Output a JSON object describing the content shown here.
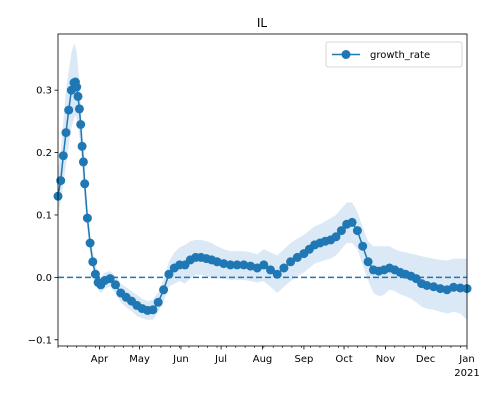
{
  "colors": {
    "series": "#1f77b4",
    "band": "#dbe9f6",
    "zero_line": "#1f77b4",
    "axes": "#000000",
    "background": "#ffffff"
  },
  "chart_data": {
    "type": "line",
    "title": "IL",
    "xlabel": "",
    "ylabel": "",
    "grid": false,
    "legend": {
      "position": "top-right",
      "entries": [
        "growth_rate"
      ]
    },
    "x_range": [
      "2020-03-01",
      "2021-01-01"
    ],
    "ylim": [
      -0.11,
      0.39
    ],
    "y_ticks": [
      -0.1,
      0.0,
      0.1,
      0.2,
      0.3
    ],
    "y_tick_labels": [
      "−0.1",
      "0.0",
      "0.1",
      "0.2",
      "0.3"
    ],
    "x_ticks": [
      {
        "date": "2020-04-01",
        "label": "Apr"
      },
      {
        "date": "2020-05-01",
        "label": "May"
      },
      {
        "date": "2020-06-01",
        "label": "Jun"
      },
      {
        "date": "2020-07-01",
        "label": "Jul"
      },
      {
        "date": "2020-08-01",
        "label": "Aug"
      },
      {
        "date": "2020-09-01",
        "label": "Sep"
      },
      {
        "date": "2020-10-01",
        "label": "Oct"
      },
      {
        "date": "2020-11-01",
        "label": "Nov"
      },
      {
        "date": "2020-12-01",
        "label": "Dec"
      },
      {
        "date": "2021-01-01",
        "label": "Jan",
        "sublabel": "2021"
      }
    ],
    "reference_line": {
      "y": 0.0,
      "style": "dashed"
    },
    "series": [
      {
        "name": "growth_rate",
        "marker": "circle",
        "x": [
          "2020-03-01",
          "2020-03-03",
          "2020-03-05",
          "2020-03-07",
          "2020-03-09",
          "2020-03-11",
          "2020-03-13",
          "2020-03-14",
          "2020-03-15",
          "2020-03-16",
          "2020-03-17",
          "2020-03-18",
          "2020-03-19",
          "2020-03-20",
          "2020-03-21",
          "2020-03-23",
          "2020-03-25",
          "2020-03-27",
          "2020-03-29",
          "2020-03-31",
          "2020-04-02",
          "2020-04-05",
          "2020-04-09",
          "2020-04-13",
          "2020-04-17",
          "2020-04-21",
          "2020-04-25",
          "2020-04-29",
          "2020-05-03",
          "2020-05-07",
          "2020-05-11",
          "2020-05-15",
          "2020-05-19",
          "2020-05-23",
          "2020-05-27",
          "2020-05-31",
          "2020-06-04",
          "2020-06-08",
          "2020-06-12",
          "2020-06-16",
          "2020-06-20",
          "2020-06-24",
          "2020-06-28",
          "2020-07-03",
          "2020-07-08",
          "2020-07-13",
          "2020-07-18",
          "2020-07-23",
          "2020-07-28",
          "2020-08-02",
          "2020-08-07",
          "2020-08-12",
          "2020-08-17",
          "2020-08-22",
          "2020-08-27",
          "2020-09-01",
          "2020-09-05",
          "2020-09-09",
          "2020-09-13",
          "2020-09-17",
          "2020-09-21",
          "2020-09-25",
          "2020-09-29",
          "2020-10-03",
          "2020-10-07",
          "2020-10-11",
          "2020-10-15",
          "2020-10-19",
          "2020-10-23",
          "2020-10-27",
          "2020-10-31",
          "2020-11-04",
          "2020-11-08",
          "2020-11-12",
          "2020-11-16",
          "2020-11-20",
          "2020-11-24",
          "2020-11-28",
          "2020-12-02",
          "2020-12-07",
          "2020-12-12",
          "2020-12-17",
          "2020-12-22",
          "2020-12-27",
          "2021-01-01"
        ],
        "values": [
          0.13,
          0.155,
          0.195,
          0.232,
          0.268,
          0.3,
          0.312,
          0.313,
          0.305,
          0.29,
          0.27,
          0.245,
          0.21,
          0.185,
          0.15,
          0.095,
          0.055,
          0.025,
          0.005,
          -0.008,
          -0.012,
          -0.005,
          -0.002,
          -0.012,
          -0.025,
          -0.032,
          -0.038,
          -0.045,
          -0.05,
          -0.053,
          -0.052,
          -0.04,
          -0.02,
          0.005,
          0.015,
          0.02,
          0.02,
          0.028,
          0.032,
          0.032,
          0.03,
          0.028,
          0.025,
          0.022,
          0.02,
          0.02,
          0.02,
          0.018,
          0.015,
          0.02,
          0.012,
          0.005,
          0.015,
          0.025,
          0.032,
          0.038,
          0.045,
          0.052,
          0.055,
          0.058,
          0.06,
          0.065,
          0.075,
          0.085,
          0.088,
          0.075,
          0.05,
          0.025,
          0.012,
          0.01,
          0.012,
          0.015,
          0.012,
          0.008,
          0.005,
          0.002,
          -0.002,
          -0.01,
          -0.013,
          -0.015,
          -0.018,
          -0.02,
          -0.016,
          -0.017,
          -0.018
        ],
        "band_upper": [
          0.17,
          0.2,
          0.25,
          0.3,
          0.33,
          0.36,
          0.375,
          0.37,
          0.36,
          0.34,
          0.31,
          0.28,
          0.24,
          0.21,
          0.17,
          0.11,
          0.07,
          0.04,
          0.02,
          0.005,
          0.0,
          0.008,
          0.01,
          0.002,
          -0.01,
          -0.016,
          -0.022,
          -0.028,
          -0.034,
          -0.038,
          -0.036,
          -0.024,
          -0.003,
          0.025,
          0.04,
          0.048,
          0.052,
          0.058,
          0.06,
          0.06,
          0.058,
          0.055,
          0.05,
          0.045,
          0.042,
          0.042,
          0.042,
          0.04,
          0.037,
          0.045,
          0.04,
          0.035,
          0.045,
          0.055,
          0.062,
          0.068,
          0.075,
          0.082,
          0.085,
          0.09,
          0.095,
          0.1,
          0.11,
          0.12,
          0.12,
          0.105,
          0.08,
          0.058,
          0.05,
          0.05,
          0.05,
          0.05,
          0.045,
          0.042,
          0.04,
          0.038,
          0.036,
          0.034,
          0.032,
          0.03,
          0.028,
          0.027,
          0.03,
          0.03,
          0.03
        ],
        "band_lower": [
          0.1,
          0.12,
          0.15,
          0.18,
          0.21,
          0.24,
          0.255,
          0.26,
          0.255,
          0.24,
          0.225,
          0.205,
          0.175,
          0.15,
          0.12,
          0.075,
          0.04,
          0.012,
          -0.008,
          -0.02,
          -0.025,
          -0.018,
          -0.015,
          -0.026,
          -0.04,
          -0.048,
          -0.054,
          -0.062,
          -0.066,
          -0.068,
          -0.068,
          -0.056,
          -0.038,
          -0.015,
          -0.01,
          -0.006,
          -0.01,
          -0.002,
          0.004,
          0.004,
          0.002,
          0.0,
          -0.002,
          -0.002,
          -0.004,
          -0.004,
          -0.004,
          -0.006,
          -0.008,
          -0.006,
          -0.015,
          -0.025,
          -0.015,
          -0.006,
          0.002,
          0.008,
          0.015,
          0.022,
          0.025,
          0.028,
          0.03,
          0.035,
          0.045,
          0.055,
          0.055,
          0.045,
          0.02,
          -0.005,
          -0.025,
          -0.03,
          -0.028,
          -0.02,
          -0.022,
          -0.027,
          -0.03,
          -0.034,
          -0.04,
          -0.047,
          -0.05,
          -0.052,
          -0.055,
          -0.058,
          -0.055,
          -0.058,
          -0.068
        ]
      }
    ]
  }
}
